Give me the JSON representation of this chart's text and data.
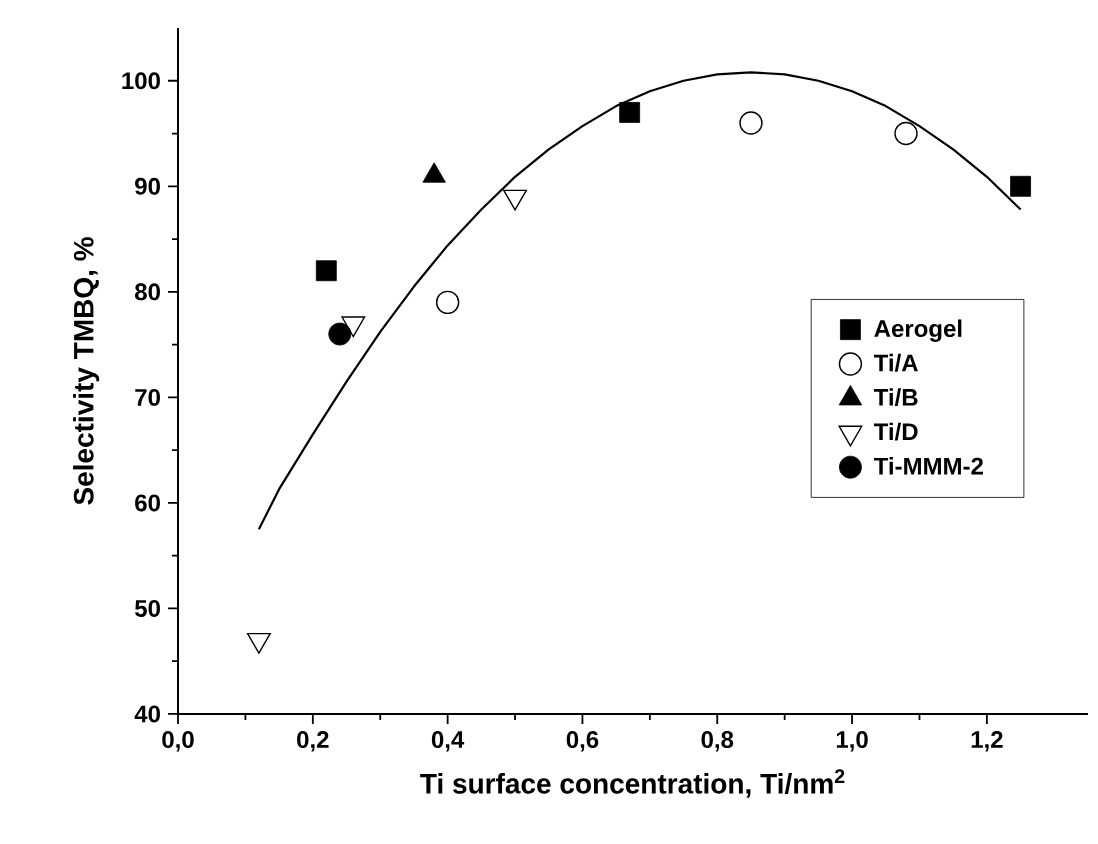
{
  "chart_data": {
    "type": "scatter",
    "xlabel": "Ti surface concentration, Ti/nm$^{2}$",
    "ylabel": "Selectivity TMBQ, %",
    "xlim": [
      0,
      1.35
    ],
    "ylim": [
      40,
      105
    ],
    "xticks": [
      {
        "value": 0,
        "label": "0,0"
      },
      {
        "value": 0.2,
        "label": "0,2"
      },
      {
        "value": 0.4,
        "label": "0,4"
      },
      {
        "value": 0.6,
        "label": "0,6"
      },
      {
        "value": 0.8,
        "label": "0,8"
      },
      {
        "value": 1.0,
        "label": "1,0"
      },
      {
        "value": 1.2,
        "label": "1,2"
      }
    ],
    "yticks": [
      40,
      50,
      60,
      70,
      80,
      90,
      100
    ],
    "grid": false,
    "legend": "right",
    "series": [
      {
        "name": "Aerogel",
        "color": "#000000",
        "marker": "square",
        "x": [
          0.22,
          0.67,
          1.25
        ],
        "values": [
          82,
          97,
          90
        ]
      },
      {
        "name": "Ti/A",
        "color": "#000000",
        "marker": "circle-open",
        "x": [
          0.4,
          0.85,
          1.08
        ],
        "values": [
          79,
          96,
          95
        ]
      },
      {
        "name": "Ti/B",
        "color": "#000000",
        "marker": "triangle",
        "x": [
          0.38
        ],
        "values": [
          91
        ]
      },
      {
        "name": "Ti/D",
        "color": "#000000",
        "marker": "triangle-down-open",
        "x": [
          0.12,
          0.26,
          0.5
        ],
        "values": [
          47,
          77,
          89
        ]
      },
      {
        "name": "Ti-MMM-2",
        "color": "#000000",
        "marker": "circle",
        "x": [
          0.24
        ],
        "values": [
          76
        ]
      },
      {
        "type": "line",
        "color": "#000000",
        "marker": "none",
        "line_style": "solid",
        "x": [
          0.12,
          0.15,
          0.2,
          0.25,
          0.3,
          0.35,
          0.4,
          0.45,
          0.5,
          0.55,
          0.6,
          0.65,
          0.7,
          0.75,
          0.8,
          0.85,
          0.9,
          0.95,
          1.0,
          1.05,
          1.1,
          1.15,
          1.2,
          1.25
        ],
        "values": [
          57.5,
          61.3,
          66.5,
          71.5,
          76.2,
          80.5,
          84.4,
          87.8,
          90.9,
          93.5,
          95.7,
          97.6,
          99.0,
          100.0,
          100.6,
          100.8,
          100.6,
          100.0,
          99.0,
          97.6,
          95.7,
          93.5,
          90.9,
          87.8
        ]
      }
    ]
  }
}
